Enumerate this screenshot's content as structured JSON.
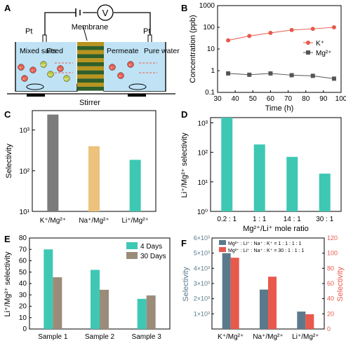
{
  "colors": {
    "teal": "#3ec8b4",
    "gray": "#7b7b7b",
    "orange": "#ecc27d",
    "brown": "#9b8c7a",
    "slate": "#5a7a8c",
    "red": "#e8594c",
    "k_line": "#e8594c",
    "mg_line": "#555555",
    "axis": "#000000"
  },
  "panel_a": {
    "letter": "A",
    "pt_left": "Pt",
    "pt_right": "Pt",
    "voltmeter": "V",
    "membrane": "Membrane",
    "mixed_salts": "Mixed salts",
    "feed": "Feed",
    "permeate": "Permeate",
    "pure_water": "Pure water",
    "stirrer": "Stirrer",
    "ions": {
      "k": "K⁺",
      "mg": "Mg²⁺",
      "na": "Na⁺"
    },
    "icons": [
      "voltmeter-icon",
      "membrane-stack-icon",
      "ion-icon",
      "stir-bar-icon",
      "flow-arrow-icon"
    ]
  },
  "panel_b": {
    "letter": "B",
    "chart_data": {
      "type": "line",
      "xlabel": "Time (h)",
      "ylabel": "Concentration (ppb)",
      "yscale": "log",
      "xlim": [
        30,
        100
      ],
      "ylim": [
        0.1,
        1000
      ],
      "xticks": [
        "30",
        "40",
        "50",
        "60",
        "70",
        "80",
        "90",
        "100"
      ],
      "yticks": [
        "0.1",
        "1",
        "10",
        "100",
        "1000"
      ],
      "x": [
        36,
        48,
        60,
        72,
        84,
        96
      ],
      "series": [
        {
          "name": "K⁺",
          "values": [
            25,
            40,
            55,
            75,
            85,
            100
          ],
          "marker": "circle"
        },
        {
          "name": "Mg²⁺",
          "values": [
            0.75,
            0.65,
            0.75,
            0.62,
            0.58,
            0.43
          ],
          "marker": "square"
        }
      ],
      "legend": "middle-right"
    }
  },
  "panel_c": {
    "letter": "C",
    "chart_data": {
      "type": "bar",
      "ylabel": "Selectivity",
      "yscale": "log",
      "ylim": [
        10,
        3000
      ],
      "yticks": [
        "10¹",
        "10²",
        "10³"
      ],
      "categories": [
        "K⁺/Mg²⁺",
        "Na⁺/Mg²⁺",
        "Li⁺/Mg²⁺"
      ],
      "values": [
        2400,
        400,
        185
      ]
    }
  },
  "panel_d": {
    "letter": "D",
    "chart_data": {
      "type": "bar",
      "xlabel": "Mg²⁺/Li⁺ mole ratio",
      "ylabel": "Li⁺/Mg²⁺ selectivity",
      "yscale": "log",
      "ylim": [
        1,
        1500
      ],
      "yticks": [
        "10⁰",
        "10¹",
        "10²",
        "10³"
      ],
      "categories": [
        "0.2 : 1",
        "1 : 1",
        "14 : 1",
        "30 : 1"
      ],
      "values": [
        1500,
        185,
        70,
        19
      ]
    }
  },
  "panel_e": {
    "letter": "E",
    "chart_data": {
      "type": "bar",
      "ylabel": "Li⁺/Mg²⁺ selectivity",
      "ylim": [
        0,
        80
      ],
      "yticks": [
        "0",
        "10",
        "20",
        "30",
        "40",
        "50",
        "60",
        "70",
        "80"
      ],
      "categories": [
        "Sample 1",
        "Sample 2",
        "Sample 3"
      ],
      "series": [
        {
          "name": "4 Days",
          "values": [
            70,
            52,
            26.5
          ]
        },
        {
          "name": "30 Days",
          "values": [
            45.5,
            34.5,
            29.5
          ]
        }
      ],
      "legend": "top-right"
    }
  },
  "panel_f": {
    "letter": "F",
    "chart_data": {
      "type": "bar",
      "ylabel": "Selectivity",
      "y2label": "Selectivity",
      "ylim": [
        0,
        6000
      ],
      "y2lim": [
        0,
        120
      ],
      "yticks": [
        "1×10³",
        "2×10³",
        "3×10³",
        "4×10³",
        "5×10³",
        "6×10³"
      ],
      "y2ticks": [
        "0",
        "20",
        "40",
        "60",
        "80",
        "100",
        "120"
      ],
      "categories": [
        "K⁺/Mg²⁺",
        "Na⁺/Mg²⁺",
        "Li⁺/Mg²⁺"
      ],
      "series": [
        {
          "name": "Mg²⁺ : Li⁺ : Na⁺ : K⁺ = 1 : 1 : 1 : 1",
          "values": [
            5000,
            2600,
            1150
          ],
          "axis": "left"
        },
        {
          "name": "Mg²⁺ : Li⁺ : Na⁺ : K⁺ = 30 : 1 : 1 : 1",
          "values": [
            94,
            69,
            19.5
          ],
          "axis": "right"
        }
      ],
      "legend": "top"
    }
  }
}
